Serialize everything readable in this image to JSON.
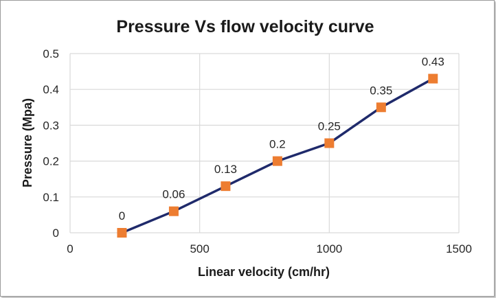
{
  "chart_data": {
    "type": "line",
    "title": "Pressure Vs flow velocity curve",
    "xlabel": "Linear velocity (cm/hr)",
    "ylabel": "Pressure (Mpa)",
    "xlim": [
      0,
      1500
    ],
    "ylim": [
      0,
      0.5
    ],
    "xticks": [
      0,
      500,
      1000,
      1500
    ],
    "yticks": [
      0,
      0.1,
      0.2,
      0.3,
      0.4,
      0.5
    ],
    "xtick_labels": [
      "0",
      "500",
      "1000",
      "1500"
    ],
    "ytick_labels": [
      "0",
      "0.1",
      "0.2",
      "0.3",
      "0.4",
      "0.5"
    ],
    "grid": true,
    "series": [
      {
        "name": "Pressure",
        "x": [
          200,
          400,
          600,
          800,
          1000,
          1200,
          1400
        ],
        "values": [
          0,
          0.06,
          0.13,
          0.2,
          0.25,
          0.35,
          0.43
        ],
        "labels": [
          "0",
          "0.06",
          "0.13",
          "0.2",
          "0.25",
          "0.35",
          "0.43"
        ],
        "line_color": "#1f2a6b",
        "marker_color": "#ed7d31"
      }
    ],
    "gridline_color": "#d9d9d9"
  }
}
